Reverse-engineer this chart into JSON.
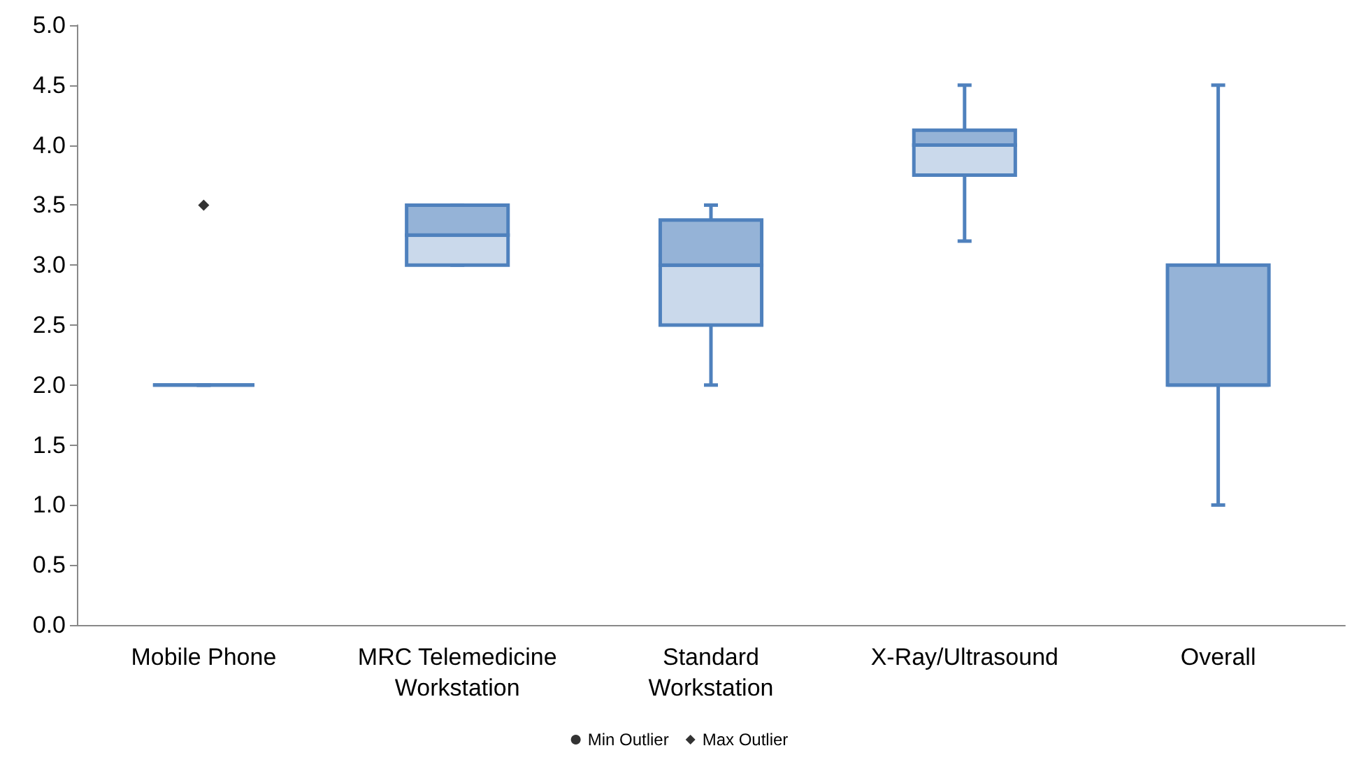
{
  "chart_data": {
    "type": "box",
    "categories": [
      "Mobile Phone",
      "MRC Telemedicine\nWorkstation",
      "Standard\nWorkstation",
      "X-Ray/Ultrasound",
      "Overall"
    ],
    "series": [
      {
        "color": "#4f81bd",
        "boxes": [
          {
            "low": 2.0,
            "q1": 2.0,
            "median": 2.0,
            "q3": 2.0,
            "high": 2.0
          },
          {
            "low": 3.0,
            "q1": 3.0,
            "median": 3.25,
            "q3": 3.5,
            "high": 3.5
          },
          {
            "low": 2.0,
            "q1": 2.5,
            "median": 3.0,
            "q3": 3.375,
            "high": 3.5
          },
          {
            "low": 3.2,
            "q1": 3.75,
            "median": 4.0,
            "q3": 4.125,
            "high": 4.5
          },
          {
            "low": 1.0,
            "q1": 2.0,
            "median": 2.0,
            "q3": 3.0,
            "high": 4.5
          }
        ]
      },
      {
        "type": "scatter",
        "name": "Min Outlier",
        "color": "#000000",
        "marker": "circle",
        "values": [
          null,
          null,
          null,
          null,
          null
        ]
      },
      {
        "type": "scatter",
        "name": "Max Outlier",
        "color": "#000000",
        "marker": "diamond",
        "x": [
          "Mobile Phone"
        ],
        "values": [
          3.5
        ]
      }
    ],
    "ylim": [
      0,
      5
    ],
    "yticks": [
      {
        "value": 0,
        "label": "0.0"
      },
      {
        "value": 0.5,
        "label": "0.5"
      },
      {
        "value": 1,
        "label": "1.0"
      },
      {
        "value": 1.5,
        "label": "1.5"
      },
      {
        "value": 2,
        "label": "2.0"
      },
      {
        "value": 2.5,
        "label": "2.5"
      },
      {
        "value": 3,
        "label": "3.0"
      },
      {
        "value": 3.5,
        "label": "3.5"
      },
      {
        "value": 4,
        "label": "4.0"
      },
      {
        "value": 4.5,
        "label": "4.5"
      },
      {
        "value": 5,
        "label": "5.0"
      }
    ],
    "grid": false,
    "legend": "bottom"
  }
}
